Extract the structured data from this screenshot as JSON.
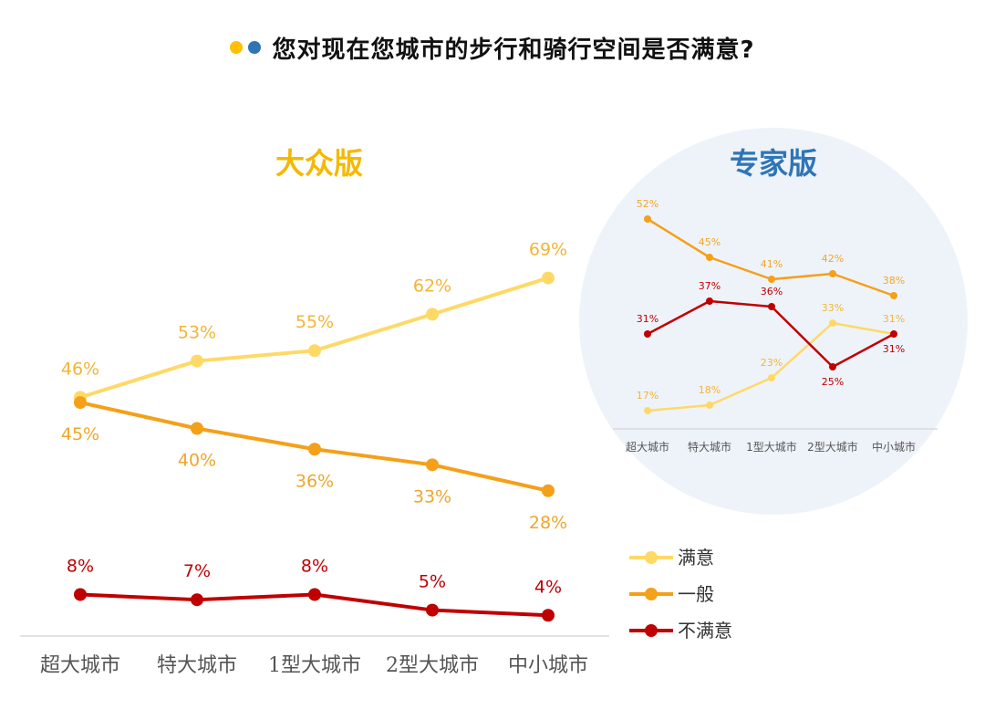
{
  "title": "您对现在您城市的步行和骑行空间是否满意?",
  "colors": {
    "dot_yellow": "#FFC000",
    "dot_blue": "#2E75B6",
    "satisfied": "#FFD966",
    "neutral": "#F4A019",
    "dissatisfied": "#C00000",
    "satisfied_label": "#F2B535",
    "neutral_label": "#F0A62A",
    "dissatisfied_label": "#C00000",
    "public_title": "#F5B800",
    "expert_title": "#2E75B6",
    "expert_circle": "#EEF3FA",
    "axis": "#D9D9D9",
    "tick_text": "#555555"
  },
  "chart_data": [
    {
      "type": "line",
      "title": "大众版",
      "categories": [
        "超大城市",
        "特大城市",
        "1型大城市",
        "2型大城市",
        "中小城市"
      ],
      "series": [
        {
          "name": "满意",
          "values": [
            46,
            53,
            55,
            62,
            69
          ]
        },
        {
          "name": "一般",
          "values": [
            45,
            40,
            36,
            33,
            28
          ]
        },
        {
          "name": "不满意",
          "values": [
            8,
            7,
            8,
            5,
            4
          ]
        }
      ],
      "value_suffix": "%",
      "ylim": [
        0,
        80
      ],
      "legend": "bottom-right"
    },
    {
      "type": "line",
      "title": "专家版",
      "categories": [
        "超大城市",
        "特大城市",
        "1型大城市",
        "2型大城市",
        "中小城市"
      ],
      "series": [
        {
          "name": "满意",
          "values": [
            17,
            18,
            23,
            33,
            31
          ]
        },
        {
          "name": "一般",
          "values": [
            52,
            45,
            41,
            42,
            38
          ]
        },
        {
          "name": "不满意",
          "values": [
            31,
            37,
            36,
            25,
            31
          ]
        }
      ],
      "value_suffix": "%",
      "ylim": [
        0,
        60
      ]
    }
  ]
}
